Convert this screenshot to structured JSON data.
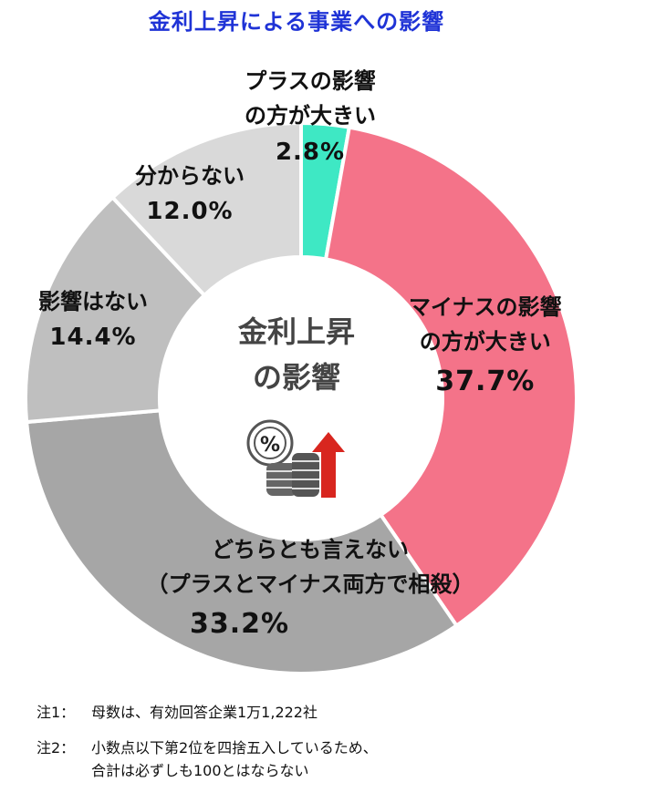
{
  "title": "金利上昇による事業への影響",
  "center_label": [
    "金利上昇",
    "の影響"
  ],
  "center_icon": "percent-coins-rising-arrow-icon",
  "chart_data": {
    "type": "pie",
    "donut": true,
    "slices": [
      {
        "label_lines": [
          "プラスの影響",
          "の方が大きい"
        ],
        "value": 2.8,
        "value_text": "2.8%",
        "color": "#3ee8c4"
      },
      {
        "label_lines": [
          "マイナスの影響",
          "の方が大きい"
        ],
        "value": 37.7,
        "value_text": "37.7%",
        "color": "#f47389"
      },
      {
        "label_lines": [
          "どちらとも言えない",
          "（プラスとマイナス両方で相殺）"
        ],
        "value": 33.2,
        "value_text": "33.2%",
        "color": "#a6a6a6"
      },
      {
        "label_lines": [
          "影響はない"
        ],
        "value": 14.4,
        "value_text": "14.4%",
        "color": "#bfbfbf"
      },
      {
        "label_lines": [
          "分からない"
        ],
        "value": 12.0,
        "value_text": "12.0%",
        "color": "#d9d9d9"
      }
    ]
  },
  "notes": [
    {
      "key": "注1：",
      "lines": [
        "母数は、有効回答企業1万1,222社"
      ]
    },
    {
      "key": "注2：",
      "lines": [
        "小数点以下第2位を四捨五入しているため、",
        "合計は必ずしも100とはならない"
      ]
    }
  ]
}
